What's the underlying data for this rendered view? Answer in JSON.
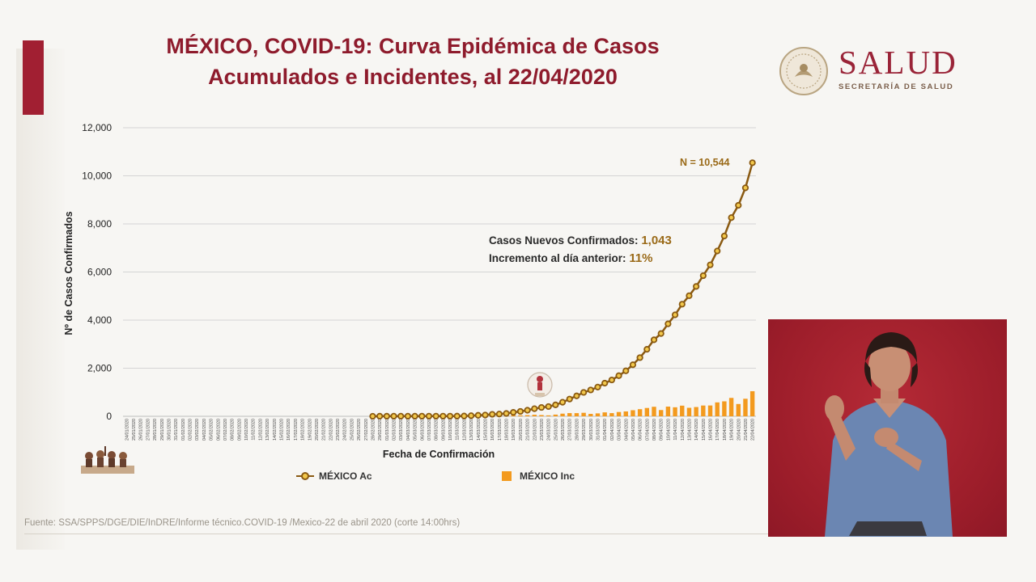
{
  "header": {
    "title_line1": "MÉXICO, COVID-19: Curva Epidémica de Casos",
    "title_line2": "Acumulados e Incidentes, al 22/04/2020"
  },
  "brand": {
    "name": "SALUD",
    "subtitle": "SECRETARÍA DE SALUD"
  },
  "annotations": {
    "nuevos_label": "Casos Nuevos Confirmados:",
    "nuevos_value": "1,043",
    "incremento_label": "Incremento al día anterior:",
    "incremento_value": "11%",
    "total_label": "N = 10,544"
  },
  "legend": {
    "acumulados": "MÉXICO Ac",
    "incidentes": "MÉXICO Inc"
  },
  "footer": {
    "source": "Fuente: SSA/SPPS/DGE/DIE/InDRE/Informe técnico.COVID-19 /Mexico-22 de abril 2020 (corte 14:00hrs)"
  },
  "colors": {
    "title": "#8e1b2c",
    "brand": "#9a2438",
    "line": "#8a5a12",
    "marker_fill": "#f2c84b",
    "bar": "#f39a1e",
    "interpreter_bg": "#a31f2c"
  },
  "chart_data": {
    "type": "bar",
    "xlabel": "Fecha de Confirmación",
    "ylabel": "Nº de Casos Confirmados",
    "ylim": [
      0,
      12000
    ],
    "yticks": [
      0,
      2000,
      4000,
      6000,
      8000,
      10000,
      12000
    ],
    "ytick_labels": [
      "0",
      "2,000",
      "4,000",
      "6,000",
      "8,000",
      "10,000",
      "12,000"
    ],
    "grid": true,
    "legend_position": "bottom",
    "x_start": "2020-01-24",
    "x_end": "2020-04-22",
    "series": [
      {
        "name": "MÉXICO Ac",
        "type": "line",
        "marker": "circle",
        "points": [
          [
            "2020-02-28",
            1
          ],
          [
            "2020-02-29",
            4
          ],
          [
            "2020-03-01",
            4
          ],
          [
            "2020-03-02",
            5
          ],
          [
            "2020-03-03",
            5
          ],
          [
            "2020-03-04",
            5
          ],
          [
            "2020-03-05",
            5
          ],
          [
            "2020-03-06",
            6
          ],
          [
            "2020-03-07",
            7
          ],
          [
            "2020-03-08",
            7
          ],
          [
            "2020-03-09",
            7
          ],
          [
            "2020-03-10",
            7
          ],
          [
            "2020-03-11",
            8
          ],
          [
            "2020-03-12",
            12
          ],
          [
            "2020-03-13",
            26
          ],
          [
            "2020-03-14",
            41
          ],
          [
            "2020-03-15",
            53
          ],
          [
            "2020-03-16",
            82
          ],
          [
            "2020-03-17",
            93
          ],
          [
            "2020-03-18",
            118
          ],
          [
            "2020-03-19",
            164
          ],
          [
            "2020-03-20",
            203
          ],
          [
            "2020-03-21",
            251
          ],
          [
            "2020-03-22",
            316
          ],
          [
            "2020-03-23",
            367
          ],
          [
            "2020-03-24",
            405
          ],
          [
            "2020-03-25",
            475
          ],
          [
            "2020-03-26",
            585
          ],
          [
            "2020-03-27",
            717
          ],
          [
            "2020-03-28",
            848
          ],
          [
            "2020-03-29",
            993
          ],
          [
            "2020-03-30",
            1094
          ],
          [
            "2020-03-31",
            1215
          ],
          [
            "2020-04-01",
            1378
          ],
          [
            "2020-04-02",
            1510
          ],
          [
            "2020-04-03",
            1688
          ],
          [
            "2020-04-04",
            1890
          ],
          [
            "2020-04-05",
            2143
          ],
          [
            "2020-04-06",
            2439
          ],
          [
            "2020-04-07",
            2785
          ],
          [
            "2020-04-08",
            3181
          ],
          [
            "2020-04-09",
            3441
          ],
          [
            "2020-04-10",
            3844
          ],
          [
            "2020-04-11",
            4219
          ],
          [
            "2020-04-12",
            4661
          ],
          [
            "2020-04-13",
            5014
          ],
          [
            "2020-04-14",
            5399
          ],
          [
            "2020-04-15",
            5847
          ],
          [
            "2020-04-16",
            6297
          ],
          [
            "2020-04-17",
            6875
          ],
          [
            "2020-04-18",
            7497
          ],
          [
            "2020-04-19",
            8261
          ],
          [
            "2020-04-20",
            8772
          ],
          [
            "2020-04-21",
            9501
          ],
          [
            "2020-04-22",
            10544
          ]
        ]
      },
      {
        "name": "MÉXICO Inc",
        "type": "bar",
        "points": [
          [
            "2020-03-13",
            14
          ],
          [
            "2020-03-14",
            15
          ],
          [
            "2020-03-15",
            12
          ],
          [
            "2020-03-16",
            29
          ],
          [
            "2020-03-17",
            11
          ],
          [
            "2020-03-18",
            25
          ],
          [
            "2020-03-19",
            46
          ],
          [
            "2020-03-20",
            39
          ],
          [
            "2020-03-21",
            48
          ],
          [
            "2020-03-22",
            65
          ],
          [
            "2020-03-23",
            51
          ],
          [
            "2020-03-24",
            38
          ],
          [
            "2020-03-25",
            70
          ],
          [
            "2020-03-26",
            110
          ],
          [
            "2020-03-27",
            132
          ],
          [
            "2020-03-28",
            131
          ],
          [
            "2020-03-29",
            145
          ],
          [
            "2020-03-30",
            101
          ],
          [
            "2020-03-31",
            121
          ],
          [
            "2020-04-01",
            163
          ],
          [
            "2020-04-02",
            132
          ],
          [
            "2020-04-03",
            178
          ],
          [
            "2020-04-04",
            202
          ],
          [
            "2020-04-05",
            253
          ],
          [
            "2020-04-06",
            296
          ],
          [
            "2020-04-07",
            346
          ],
          [
            "2020-04-08",
            396
          ],
          [
            "2020-04-09",
            260
          ],
          [
            "2020-04-10",
            403
          ],
          [
            "2020-04-11",
            375
          ],
          [
            "2020-04-12",
            442
          ],
          [
            "2020-04-13",
            353
          ],
          [
            "2020-04-14",
            385
          ],
          [
            "2020-04-15",
            448
          ],
          [
            "2020-04-16",
            450
          ],
          [
            "2020-04-17",
            578
          ],
          [
            "2020-04-18",
            622
          ],
          [
            "2020-04-19",
            764
          ],
          [
            "2020-04-20",
            511
          ],
          [
            "2020-04-21",
            729
          ],
          [
            "2020-04-22",
            1043
          ]
        ]
      }
    ]
  }
}
